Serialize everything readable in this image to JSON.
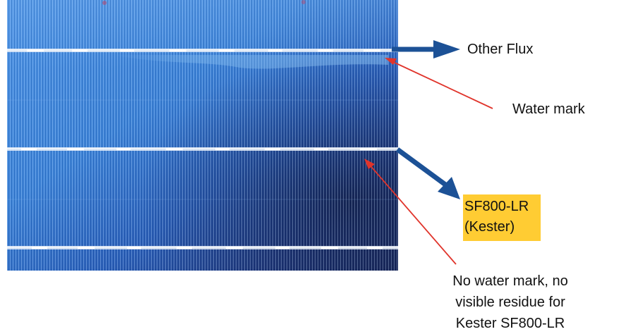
{
  "colors": {
    "cell_light": "#3f86da",
    "cell_dark": "#1d2d61",
    "busbar": "#f4f6fb",
    "blue_arrow": "#1c5196",
    "red_arrow": "#e0342b",
    "highlight": "#ffcc33"
  },
  "labels": {
    "other_flux": "Other Flux",
    "water_mark": "Water mark",
    "sf800_line1": "SF800-LR",
    "sf800_line2": "(Kester)",
    "no_mark_line1": "No water mark, no",
    "no_mark_line2": "visible residue for",
    "no_mark_line3": "Kester SF800-LR"
  }
}
